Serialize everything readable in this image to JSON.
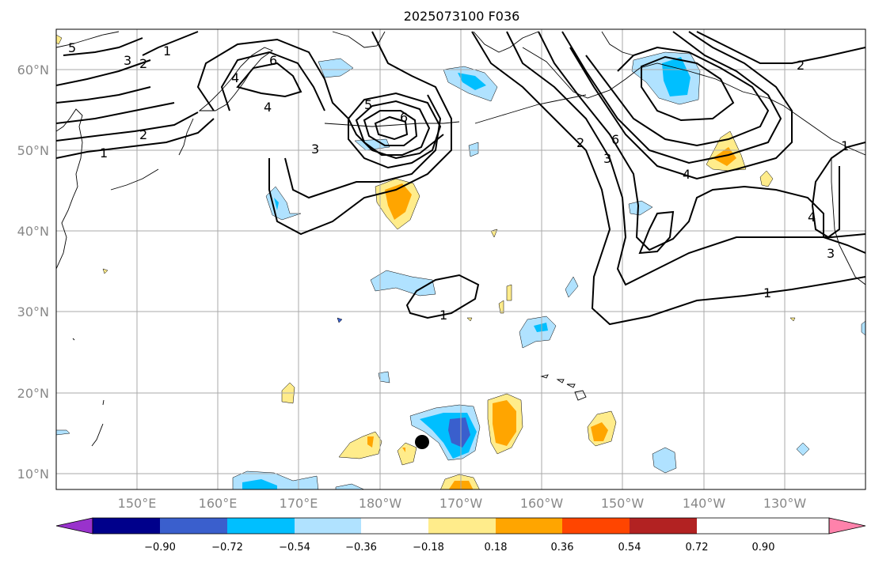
{
  "title": "2025073100 F036",
  "map": {
    "lon_range": [
      140,
      240
    ],
    "lat_range": [
      8,
      65
    ],
    "lat_ticks": [
      "10°N",
      "20°N",
      "30°N",
      "40°N",
      "50°N",
      "60°N"
    ],
    "lon_ticks": [
      "150°E",
      "160°E",
      "170°E",
      "180°W",
      "170°W",
      "160°W",
      "150°W",
      "140°W",
      "130°W"
    ],
    "marker": {
      "lon": 186,
      "lat": 14,
      "color": "#000000"
    },
    "contour_labels": [
      "1",
      "2",
      "3",
      "4",
      "5",
      "6",
      "1",
      "2",
      "3",
      "4",
      "5",
      "6",
      "1",
      "2",
      "3",
      "4",
      "6",
      "1",
      "3",
      "4",
      "2",
      "1"
    ]
  },
  "colorbar": {
    "colors": [
      "#9932CC",
      "#00008B",
      "#3A5FCD",
      "#00BFFF",
      "#B0E2FF",
      "#FFFFFF",
      "#FFEC8B",
      "#FFA500",
      "#FF4500",
      "#B22222",
      "#FF82AB"
    ],
    "labels": [
      "−0.90",
      "−0.72",
      "−0.54",
      "−0.36",
      "−0.18",
      "0.18",
      "0.36",
      "0.54",
      "0.72",
      "0.90"
    ]
  }
}
